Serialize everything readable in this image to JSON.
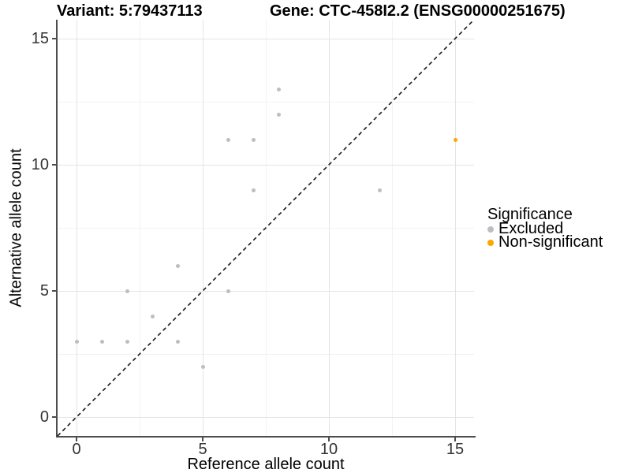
{
  "chart_data": {
    "type": "scatter",
    "variant_title": "Variant: 5:79437113",
    "gene_title": "Gene: CTC-458I2.2 (ENSG00000251675)",
    "xlabel": "Reference allele count",
    "ylabel": "Alternative allele count",
    "xlim": [
      -0.75,
      15.75
    ],
    "ylim": [
      -0.75,
      15.75
    ],
    "x_major_ticks": [
      0,
      5,
      10,
      15
    ],
    "y_major_ticks": [
      0,
      5,
      10,
      15
    ],
    "x_minor_ticks": [
      2.5,
      7.5,
      12.5
    ],
    "y_minor_ticks": [
      2.5,
      7.5,
      12.5
    ],
    "grid": true,
    "legend": {
      "title": "Significance",
      "position": "right",
      "items": [
        {
          "label": "Excluded",
          "color": "#BEBEBE"
        },
        {
          "label": "Non-significant",
          "color": "#FFA500"
        }
      ]
    },
    "identity_line": {
      "slope": 1,
      "intercept": 0,
      "style": "dashed",
      "color": "#1A1A1A"
    },
    "series": [
      {
        "name": "Excluded",
        "color": "#BEBEBE",
        "points": [
          [
            0,
            3
          ],
          [
            1,
            3
          ],
          [
            2,
            3
          ],
          [
            2,
            5
          ],
          [
            3,
            4
          ],
          [
            4,
            3
          ],
          [
            4,
            6
          ],
          [
            5,
            2
          ],
          [
            6,
            5
          ],
          [
            6,
            11
          ],
          [
            7,
            9
          ],
          [
            7,
            11
          ],
          [
            8,
            12
          ],
          [
            8,
            13
          ],
          [
            12,
            9
          ]
        ]
      },
      {
        "name": "Non-significant",
        "color": "#FFA500",
        "points": [
          [
            15,
            11
          ]
        ]
      }
    ],
    "style": {
      "grid_major_color": "#E4E4E4",
      "grid_minor_color": "#F2F2F2",
      "axis_line_color": "#4D4D4D",
      "tick_label_color": "#333333"
    }
  }
}
